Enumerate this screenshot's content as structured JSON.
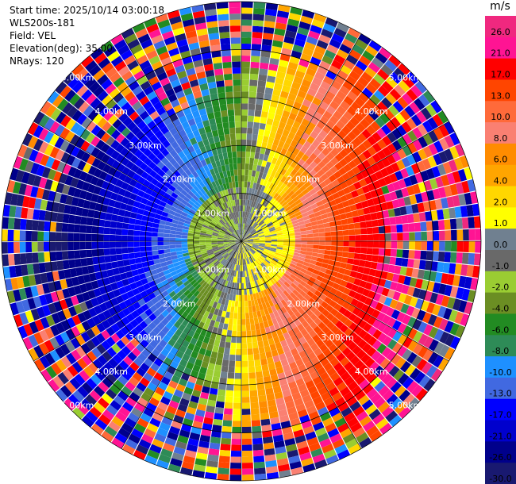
{
  "header": {
    "start_time": "Start time: 2025/10/14 03:00:18",
    "instrument": "WLS200s-181",
    "field": "Field: VEL",
    "elevation": "Elevation(deg): 35.00",
    "nrays": "NRays: 120"
  },
  "colorbar": {
    "unit": "m/s",
    "levels": [
      {
        "label": "26.0",
        "color": "#f0287f"
      },
      {
        "label": "21.0",
        "color": "#ff1493"
      },
      {
        "label": "17.0",
        "color": "#ff0000"
      },
      {
        "label": "13.0",
        "color": "#ff4500"
      },
      {
        "label": "10.0",
        "color": "#ff6a3a"
      },
      {
        "label": "8.0",
        "color": "#fa8072"
      },
      {
        "label": "6.0",
        "color": "#ff8c00"
      },
      {
        "label": "4.0",
        "color": "#ffa500"
      },
      {
        "label": "2.0",
        "color": "#ffd700"
      },
      {
        "label": "1.0",
        "color": "#ffff00"
      },
      {
        "label": "0.0",
        "color": "#708090"
      },
      {
        "label": "-1.0",
        "color": "#696969"
      },
      {
        "label": "-2.0",
        "color": "#9acd32"
      },
      {
        "label": "-4.0",
        "color": "#6b8e23"
      },
      {
        "label": "-6.0",
        "color": "#228b22"
      },
      {
        "label": "-8.0",
        "color": "#2e8b57"
      },
      {
        "label": "-10.0",
        "color": "#1e90ff"
      },
      {
        "label": "-13.0",
        "color": "#4169e1"
      },
      {
        "label": "-17.0",
        "color": "#0000ff"
      },
      {
        "label": "-21.0",
        "color": "#0000cd"
      },
      {
        "label": "-26.0",
        "color": "#00008b"
      },
      {
        "label": "-30.0",
        "color": "#191970"
      }
    ]
  },
  "chart_data": {
    "type": "heatmap",
    "projection": "polar PPI",
    "field": "VEL",
    "units": "m/s",
    "nrays": 120,
    "max_range_km": 5.0,
    "range_rings_km": [
      1,
      2,
      3,
      4,
      5
    ],
    "range_ring_labels": [
      "1.00km",
      "2.00km",
      "3.00km",
      "4.00km",
      "5.00km"
    ],
    "color_range": [
      -30,
      26
    ],
    "pattern": "positive (toward red/pink) velocities to the east/north-east, negative (blue) to the west/south-west, near-zero (gray) at center; noisy speckle beyond ~3.5 km"
  }
}
